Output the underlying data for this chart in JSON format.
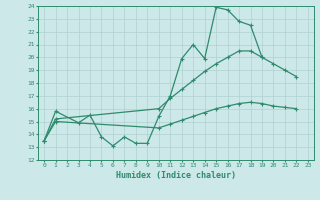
{
  "xlabel": "Humidex (Indice chaleur)",
  "color": "#2e8b6e",
  "bg_color": "#cde8e8",
  "grid_color": "#b0d0d0",
  "ylim": [
    12,
    24
  ],
  "xlim": [
    -0.5,
    23.5
  ],
  "yticks": [
    12,
    13,
    14,
    15,
    16,
    17,
    18,
    19,
    20,
    21,
    22,
    23,
    24
  ],
  "xticks": [
    0,
    1,
    2,
    3,
    4,
    5,
    6,
    7,
    8,
    9,
    10,
    11,
    12,
    13,
    14,
    15,
    16,
    17,
    18,
    19,
    20,
    21,
    22,
    23
  ],
  "line1_x": [
    0,
    1,
    3,
    4,
    5,
    6,
    7,
    8,
    9,
    10,
    11,
    12,
    13,
    14,
    15,
    16,
    17,
    18,
    19
  ],
  "line1_y": [
    13.5,
    15.8,
    14.9,
    15.5,
    13.8,
    13.1,
    13.8,
    13.3,
    13.3,
    15.4,
    17.0,
    19.9,
    21.0,
    19.9,
    23.9,
    23.7,
    22.8,
    22.5,
    20.0
  ],
  "line2_x": [
    0,
    1,
    10,
    11,
    12,
    13,
    14,
    15,
    16,
    17,
    18,
    19,
    20,
    21,
    22
  ],
  "line2_y": [
    13.5,
    15.2,
    16.0,
    16.8,
    17.5,
    18.2,
    18.9,
    19.5,
    20.0,
    20.5,
    20.5,
    20.0,
    19.5,
    19.0,
    18.5
  ],
  "line3_x": [
    0,
    1,
    10,
    11,
    12,
    13,
    14,
    15,
    16,
    17,
    18,
    19,
    20,
    21,
    22
  ],
  "line3_y": [
    13.5,
    15.0,
    14.5,
    14.8,
    15.1,
    15.4,
    15.7,
    16.0,
    16.2,
    16.4,
    16.5,
    16.4,
    16.2,
    16.1,
    16.0
  ]
}
